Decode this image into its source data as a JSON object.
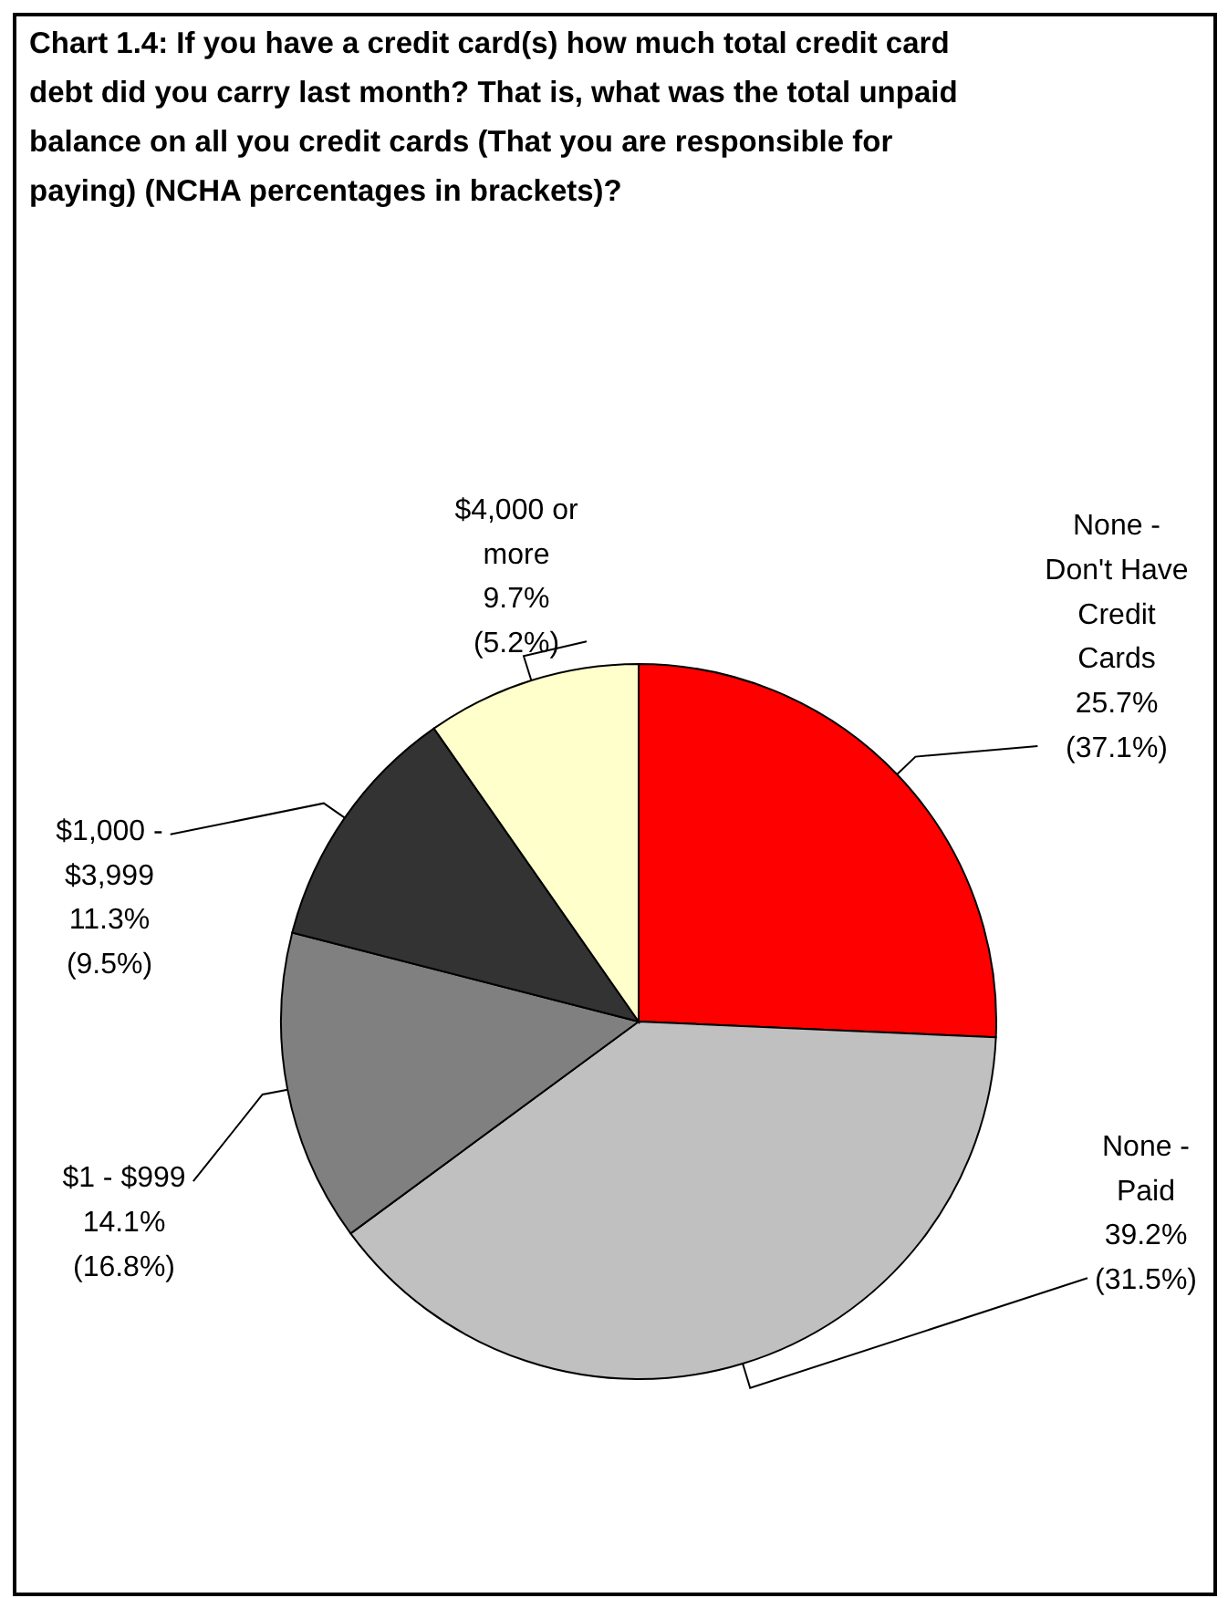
{
  "chart_data": {
    "type": "pie",
    "title": "Chart 1.4:  If you have a credit card(s) how much total credit card debt did you carry last month? That is, what was the total unpaid balance on all you credit cards (That you are responsible for paying) (NCHA percentages in brackets)?",
    "categories": [
      "None - Don't Have Credit Cards",
      "None - Paid",
      "$1 - $999",
      "$1,000 - $3,999",
      "$4,000 or more"
    ],
    "values": [
      25.7,
      39.2,
      14.1,
      11.3,
      9.7
    ],
    "value_labels": [
      "25.7% (37.1%)",
      "39.2% (31.5%)",
      "14.1% (16.8%)",
      "11.3% (9.5%)",
      "9.7% (5.2%)"
    ],
    "colors": [
      "#ff0000",
      "#c0c0c0",
      "#808080",
      "#333333",
      "#ffffcc"
    ]
  }
}
